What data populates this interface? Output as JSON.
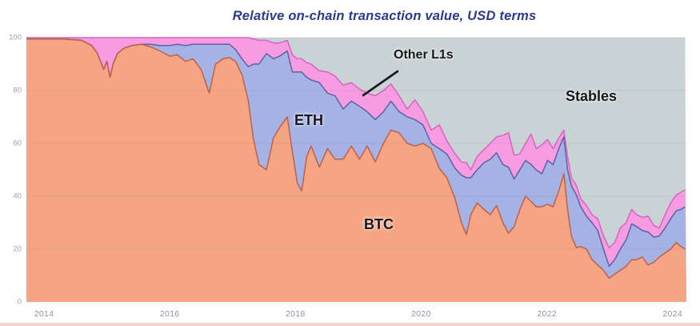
{
  "chart_data": {
    "type": "area",
    "stacked": true,
    "title": "Relative on-chain transaction value, USD terms",
    "xlabel": "",
    "ylabel": "",
    "ylim": [
      0,
      100
    ],
    "x_domain": [
      2013.72,
      2024.22
    ],
    "grid": "horizontal-faint",
    "legend_position": "none (direct area labels)",
    "y_ticks": [
      "0",
      "20",
      "40",
      "60",
      "80",
      "100"
    ],
    "y_tick_values": [
      0,
      20,
      40,
      60,
      80,
      100
    ],
    "x_ticks": [
      "2014",
      "2016",
      "2018",
      "2020",
      "2022",
      "2024"
    ],
    "x_tick_values": [
      2014,
      2016,
      2018,
      2020,
      2022,
      2024
    ],
    "annotations": {
      "other_l1s": "Other L1s",
      "eth": "ETH",
      "btc": "BTC",
      "stables": "Stables"
    },
    "x": [
      2013.72,
      2014.0,
      2014.3,
      2014.6,
      2014.76,
      2014.85,
      2014.95,
      2015.0,
      2015.05,
      2015.1,
      2015.17,
      2015.27,
      2015.4,
      2015.55,
      2015.7,
      2015.84,
      2016.0,
      2016.12,
      2016.25,
      2016.37,
      2016.5,
      2016.63,
      2016.73,
      2016.85,
      2016.95,
      2017.05,
      2017.15,
      2017.25,
      2017.33,
      2017.42,
      2017.54,
      2017.65,
      2017.75,
      2017.87,
      2017.95,
      2018.03,
      2018.1,
      2018.18,
      2018.25,
      2018.38,
      2018.51,
      2018.63,
      2018.76,
      2018.89,
      2019.02,
      2019.14,
      2019.27,
      2019.4,
      2019.52,
      2019.65,
      2019.78,
      2019.9,
      2020.03,
      2020.16,
      2020.29,
      2020.41,
      2020.54,
      2020.64,
      2020.72,
      2020.79,
      2020.89,
      2021.0,
      2021.1,
      2021.2,
      2021.3,
      2021.39,
      2021.48,
      2021.57,
      2021.66,
      2021.75,
      2021.83,
      2021.92,
      2022.01,
      2022.1,
      2022.19,
      2022.27,
      2022.33,
      2022.39,
      2022.47,
      2022.54,
      2022.63,
      2022.72,
      2022.81,
      2022.9,
      2022.99,
      2023.08,
      2023.17,
      2023.26,
      2023.35,
      2023.43,
      2023.52,
      2023.61,
      2023.7,
      2023.79,
      2023.88,
      2023.97,
      2024.06,
      2024.13,
      2024.2
    ],
    "series": [
      {
        "name": "BTC",
        "color": "#f5a584",
        "edge_color": "#c06048",
        "values": [
          99.5,
          99.5,
          99.5,
          99,
          97,
          94,
          88,
          91,
          85,
          90,
          94,
          96,
          97,
          97.5,
          96.5,
          95,
          93,
          93.5,
          91,
          92,
          88,
          79,
          90,
          92,
          92.5,
          91,
          86,
          76,
          62,
          52,
          50,
          62,
          66,
          70,
          57,
          45,
          42,
          55,
          59,
          51,
          58,
          54,
          54,
          59,
          54,
          59,
          53,
          60,
          65,
          64,
          60,
          59,
          60,
          58,
          50.5,
          47,
          39,
          30,
          25.5,
          33,
          37.5,
          35,
          33,
          36.5,
          30,
          26,
          28.5,
          35,
          40,
          38,
          36,
          36,
          37,
          36,
          42,
          48.5,
          35,
          25,
          20.5,
          21,
          20,
          16,
          14,
          12,
          9,
          10.5,
          12,
          13.5,
          16,
          16,
          17,
          14,
          15,
          17,
          18.5,
          20,
          22.5,
          21,
          20
        ]
      },
      {
        "name": "ETH",
        "color": "#a4b2e5",
        "edge_color": "#5b63a0",
        "values": [
          0,
          0,
          0,
          0,
          0,
          0,
          0,
          0,
          0,
          0,
          0,
          0,
          0,
          0,
          1,
          2,
          4,
          4,
          6,
          5.5,
          9.5,
          18.5,
          7.5,
          5.5,
          5,
          4.5,
          6,
          13,
          28,
          38,
          44,
          30,
          27,
          25,
          30,
          42,
          45,
          30,
          25,
          32,
          21,
          24,
          19,
          17,
          20,
          13,
          16,
          12,
          11,
          8,
          10,
          10,
          7,
          2,
          7.5,
          9,
          11.5,
          18,
          21.5,
          14,
          12.5,
          17.7,
          21,
          20,
          22,
          25,
          18,
          15,
          13.5,
          14,
          14,
          12.5,
          16.5,
          16,
          16,
          14,
          15,
          19,
          20,
          15,
          12.5,
          14,
          13,
          8,
          4.5,
          5.5,
          8,
          10,
          13.5,
          12.5,
          10,
          12.5,
          9.5,
          8,
          9.5,
          11.5,
          12,
          14,
          16
        ]
      },
      {
        "name": "Other L1s",
        "color": "#f79ce2",
        "edge_color": "#d863c0",
        "values": [
          0.5,
          0.5,
          0.5,
          1,
          3,
          6,
          12,
          9,
          15,
          10,
          6,
          4,
          3,
          2.5,
          2.5,
          3,
          3,
          2.5,
          3,
          2.5,
          2.5,
          2.5,
          2.5,
          2.5,
          2.5,
          4.5,
          8,
          11,
          9.5,
          9,
          5,
          6,
          5,
          4,
          6.5,
          5,
          5,
          5.5,
          6,
          4.5,
          8,
          7.5,
          9,
          7,
          6.5,
          7,
          9,
          8,
          6.5,
          6,
          3,
          7.5,
          5,
          5,
          9,
          5,
          5.5,
          5,
          5.7,
          3,
          5,
          5,
          6,
          6,
          11,
          13,
          9,
          6,
          6.5,
          11.5,
          8,
          11,
          8,
          6,
          4,
          2.5,
          5,
          3,
          3.5,
          3,
          4,
          3,
          4.5,
          5,
          7,
          6.5,
          8,
          6.5,
          5.5,
          4.5,
          5,
          6,
          4.5,
          3,
          5,
          6,
          6,
          6.5,
          6.5
        ]
      },
      {
        "name": "Stables",
        "color": "#c9d2d4",
        "edge_color": "none",
        "values": [
          0,
          0,
          0,
          0,
          0,
          0,
          0,
          0,
          0,
          0,
          0,
          0,
          0,
          0,
          0,
          0,
          0,
          0,
          0,
          0,
          0,
          0,
          0,
          0,
          0,
          0,
          0,
          0,
          0.5,
          1,
          1,
          2,
          2,
          1,
          6.5,
          8,
          8,
          9.5,
          10,
          12.5,
          13,
          14.5,
          18,
          17,
          19.5,
          21,
          22,
          20,
          17.5,
          22,
          27,
          23.5,
          28,
          35,
          33,
          39,
          44,
          47,
          47.3,
          50,
          45,
          42.3,
          40,
          37.5,
          37,
          36,
          44.5,
          44,
          40,
          36.5,
          42,
          40.5,
          38.5,
          42,
          38,
          35,
          45,
          53,
          56,
          61,
          63.5,
          67,
          68.5,
          75,
          79.5,
          77.5,
          72,
          70,
          65,
          67,
          68,
          67.5,
          71,
          72,
          67,
          62.5,
          59.5,
          58.5,
          57.5
        ]
      }
    ]
  }
}
